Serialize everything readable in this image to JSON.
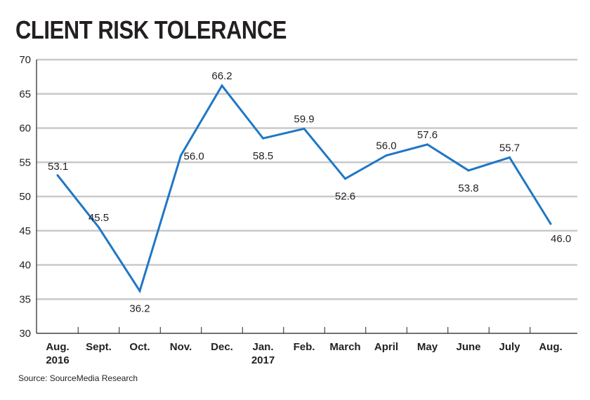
{
  "chart_data": {
    "type": "line",
    "title": "CLIENT RISK TOLERANCE",
    "source": "Source: SourceMedia Research",
    "categories": [
      [
        "Aug.",
        "2016"
      ],
      [
        "Sept."
      ],
      [
        "Oct."
      ],
      [
        "Nov."
      ],
      [
        "Dec."
      ],
      [
        "Jan.",
        "2017"
      ],
      [
        "Feb."
      ],
      [
        "March"
      ],
      [
        "April"
      ],
      [
        "May"
      ],
      [
        "June"
      ],
      [
        "July"
      ],
      [
        "Aug."
      ]
    ],
    "series": [
      {
        "values": [
          53.1,
          45.5,
          36.2,
          56.0,
          66.2,
          58.5,
          59.9,
          52.6,
          56.0,
          57.6,
          53.8,
          55.7,
          46.0
        ],
        "labels": [
          "53.1",
          "45.5",
          "36.2",
          "56.0",
          "66.2",
          "58.5",
          "59.9",
          "52.6",
          "56.0",
          "57.6",
          "53.8",
          "55.7",
          "46.0"
        ],
        "color": "#1f77c4"
      }
    ],
    "ylim": [
      30,
      70
    ],
    "yticks": [
      30,
      35,
      40,
      45,
      50,
      55,
      60,
      65,
      70
    ],
    "grid": true,
    "legend": "none"
  }
}
